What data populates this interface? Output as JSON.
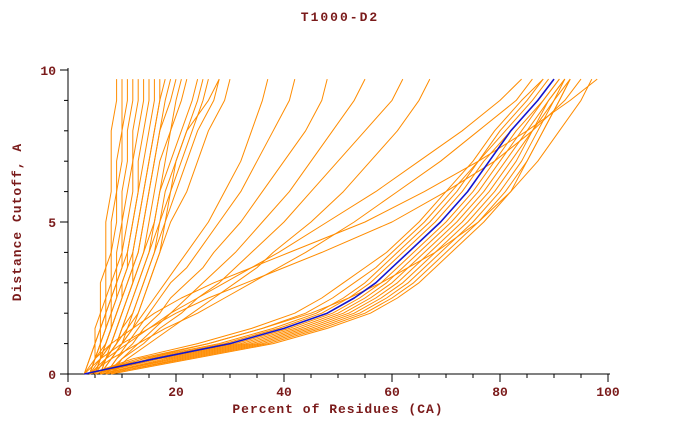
{
  "title": "T1000-D2",
  "colors": {
    "text": "#7a1a1a",
    "axis": "#000000",
    "model_line": "#ff8c00",
    "highlight_line": "#1414cc",
    "background": "#ffffff"
  },
  "chart_data": {
    "type": "line",
    "title": "T1000-D2",
    "xlabel": "Percent of Residues (CA)",
    "ylabel": "Distance Cutoff, A",
    "xlim": [
      0,
      100
    ],
    "ylim": [
      0,
      10
    ],
    "x_ticks": [
      0,
      20,
      40,
      60,
      80,
      100
    ],
    "y_ticks": [
      0,
      5,
      10
    ],
    "grid": false,
    "legend": false,
    "cutoffs": [
      0,
      0.5,
      1,
      1.5,
      2,
      2.5,
      3,
      3.5,
      4,
      5,
      6,
      7,
      8,
      9,
      9.7
    ],
    "highlight_series": {
      "name": "highlighted-model",
      "color": "#1414cc",
      "x": [
        3,
        16,
        30,
        40,
        48,
        53,
        57,
        60,
        63,
        69,
        74,
        78,
        82,
        87,
        90
      ]
    },
    "series": [
      {
        "x": [
          3,
          4,
          5,
          5,
          6,
          6,
          6,
          7,
          7,
          7,
          8,
          8,
          8,
          9,
          9
        ]
      },
      {
        "x": [
          3,
          4,
          5,
          6,
          6,
          7,
          7,
          7,
          8,
          8,
          9,
          9,
          10,
          10,
          10
        ]
      },
      {
        "x": [
          4,
          5,
          5,
          6,
          7,
          7,
          8,
          8,
          8,
          9,
          9,
          10,
          10,
          11,
          11
        ]
      },
      {
        "x": [
          4,
          5,
          6,
          6,
          7,
          8,
          8,
          9,
          9,
          10,
          10,
          11,
          11,
          12,
          12
        ]
      },
      {
        "x": [
          4,
          5,
          6,
          7,
          7,
          8,
          9,
          9,
          10,
          10,
          11,
          12,
          12,
          13,
          13
        ]
      },
      {
        "x": [
          4,
          5,
          6,
          7,
          8,
          8,
          9,
          10,
          10,
          11,
          12,
          12,
          13,
          14,
          14
        ]
      },
      {
        "x": [
          5,
          6,
          6,
          7,
          8,
          9,
          9,
          10,
          11,
          12,
          13,
          13,
          14,
          15,
          15
        ]
      },
      {
        "x": [
          5,
          6,
          7,
          8,
          8,
          9,
          10,
          11,
          11,
          12,
          13,
          14,
          15,
          16,
          16
        ]
      },
      {
        "x": [
          5,
          6,
          7,
          8,
          9,
          10,
          10,
          11,
          12,
          13,
          14,
          15,
          16,
          17,
          18
        ]
      },
      {
        "x": [
          5,
          6,
          7,
          8,
          9,
          10,
          11,
          12,
          13,
          14,
          15,
          16,
          17,
          19,
          20
        ]
      },
      {
        "x": [
          5,
          6,
          8,
          9,
          10,
          11,
          12,
          13,
          14,
          15,
          16,
          17,
          19,
          21,
          22
        ]
      },
      {
        "x": [
          6,
          7,
          8,
          9,
          10,
          11,
          12,
          13,
          14,
          16,
          17,
          19,
          21,
          23,
          24
        ]
      },
      {
        "x": [
          6,
          7,
          9,
          10,
          11,
          12,
          13,
          14,
          15,
          17,
          19,
          21,
          23,
          25,
          26
        ]
      },
      {
        "x": [
          6,
          7,
          9,
          10,
          12,
          13,
          14,
          15,
          16,
          18,
          20,
          22,
          24,
          27,
          28
        ]
      },
      {
        "x": [
          6,
          8,
          10,
          11,
          13,
          14,
          15,
          16,
          17,
          19,
          22,
          24,
          26,
          29,
          30
        ]
      },
      {
        "x": [
          5,
          7,
          9,
          10,
          11,
          12,
          13,
          14,
          15,
          16,
          17,
          18,
          19,
          20,
          21
        ]
      },
      {
        "x": [
          6,
          8,
          10,
          12,
          13,
          14,
          15,
          16,
          17,
          18,
          19,
          20,
          22,
          24,
          25
        ]
      },
      {
        "x": [
          4,
          6,
          8,
          9,
          10,
          11,
          12,
          12,
          13,
          14,
          15,
          16,
          17,
          18,
          19
        ]
      },
      {
        "x": [
          5,
          7,
          9,
          11,
          12,
          13,
          14,
          15,
          16,
          17,
          18,
          20,
          22,
          26,
          28
        ]
      },
      {
        "x": [
          4,
          5,
          7,
          8,
          9,
          10,
          11,
          12,
          12,
          13,
          14,
          15,
          16,
          17,
          17
        ]
      },
      {
        "x": [
          6,
          8,
          10,
          12,
          14,
          16,
          18,
          20,
          22,
          26,
          29,
          32,
          34,
          36,
          37
        ]
      },
      {
        "x": [
          7,
          9,
          11,
          13,
          15,
          17,
          19,
          22,
          24,
          28,
          32,
          35,
          38,
          41,
          42
        ]
      },
      {
        "x": [
          7,
          9,
          12,
          14,
          17,
          19,
          22,
          25,
          27,
          32,
          36,
          40,
          44,
          47,
          48
        ]
      },
      {
        "x": [
          7,
          10,
          13,
          16,
          19,
          22,
          25,
          28,
          31,
          36,
          41,
          45,
          49,
          53,
          55
        ]
      },
      {
        "x": [
          8,
          10,
          14,
          17,
          21,
          24,
          28,
          31,
          34,
          40,
          45,
          50,
          55,
          60,
          62
        ]
      },
      {
        "x": [
          8,
          11,
          15,
          19,
          23,
          27,
          31,
          35,
          38,
          45,
          51,
          56,
          61,
          65,
          67
        ]
      },
      {
        "x": [
          4,
          14,
          28,
          38,
          46,
          51,
          55,
          58,
          61,
          67,
          72,
          76,
          81,
          86,
          89
        ]
      },
      {
        "x": [
          5,
          15,
          29,
          39,
          47,
          52,
          56,
          59,
          62,
          68,
          73,
          77,
          82,
          87,
          90
        ]
      },
      {
        "x": [
          5,
          16,
          31,
          41,
          49,
          54,
          58,
          61,
          64,
          70,
          75,
          79,
          83,
          88,
          91
        ]
      },
      {
        "x": [
          5,
          17,
          32,
          42,
          50,
          55,
          59,
          62,
          65,
          71,
          76,
          80,
          84,
          88,
          91
        ]
      },
      {
        "x": [
          6,
          18,
          33,
          43,
          51,
          56,
          60,
          63,
          66,
          72,
          77,
          81,
          85,
          89,
          92
        ]
      },
      {
        "x": [
          6,
          19,
          34,
          44,
          52,
          57,
          61,
          64,
          67,
          73,
          78,
          82,
          86,
          89,
          92
        ]
      },
      {
        "x": [
          6,
          20,
          35,
          45,
          53,
          58,
          62,
          65,
          68,
          74,
          79,
          83,
          86,
          90,
          92
        ]
      },
      {
        "x": [
          7,
          21,
          36,
          46,
          54,
          59,
          63,
          66,
          69,
          75,
          80,
          84,
          87,
          90,
          93
        ]
      },
      {
        "x": [
          7,
          22,
          37,
          47,
          55,
          60,
          64,
          67,
          70,
          76,
          81,
          85,
          88,
          91,
          93
        ]
      },
      {
        "x": [
          8,
          23,
          38,
          48,
          56,
          61,
          65,
          68,
          71,
          77,
          82,
          85,
          88,
          91,
          93
        ]
      },
      {
        "x": [
          4,
          13,
          26,
          36,
          44,
          49,
          53,
          57,
          60,
          66,
          71,
          76,
          80,
          85,
          88
        ]
      },
      {
        "x": [
          4,
          12,
          24,
          34,
          42,
          47,
          51,
          55,
          59,
          65,
          70,
          75,
          79,
          84,
          88
        ]
      },
      {
        "x": [
          5,
          14,
          26,
          36,
          45,
          52,
          58,
          63,
          68,
          76,
          82,
          87,
          91,
          95,
          97
        ]
      },
      {
        "x": [
          3,
          6,
          10,
          15,
          20,
          26,
          33,
          40,
          47,
          60,
          70,
          79,
          86,
          92,
          95
        ]
      },
      {
        "x": [
          3,
          5,
          8,
          12,
          16,
          21,
          27,
          34,
          41,
          55,
          66,
          76,
          85,
          93,
          98
        ]
      },
      {
        "x": [
          4,
          8,
          13,
          18,
          24,
          29,
          34,
          39,
          44,
          53,
          61,
          69,
          76,
          83,
          86
        ]
      },
      {
        "x": [
          4,
          7,
          11,
          15,
          19,
          24,
          29,
          34,
          39,
          48,
          57,
          65,
          73,
          80,
          84
        ]
      }
    ]
  }
}
